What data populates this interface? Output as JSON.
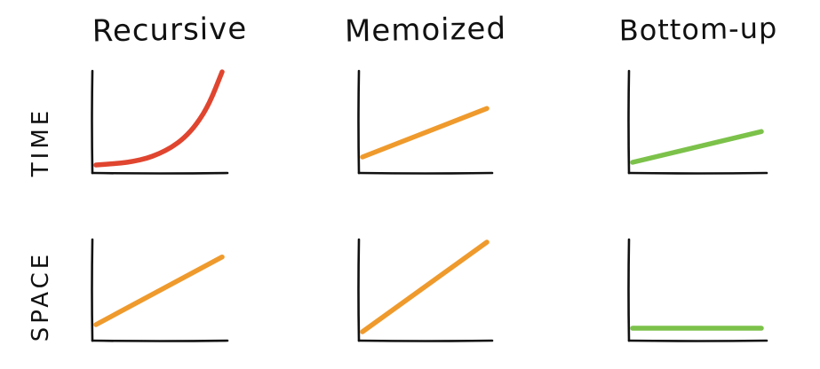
{
  "columns": [
    {
      "id": "recursive",
      "title": "Recursive"
    },
    {
      "id": "memoized",
      "title": "Memoized"
    },
    {
      "id": "bottomup",
      "title": "Bottom-up"
    }
  ],
  "rows": [
    {
      "id": "time",
      "label": "TIME"
    },
    {
      "id": "space",
      "label": "SPACE"
    }
  ],
  "colors": {
    "exponential": "#e0452f",
    "linear": "#ef9a2c",
    "efficient": "#7cc24a",
    "axis": "#111111"
  },
  "chart_data": [
    {
      "row": "time",
      "column": "recursive",
      "type": "line",
      "growth": "exponential",
      "color": "#e0452f",
      "x": [
        0,
        0.1,
        0.2,
        0.3,
        0.4,
        0.5,
        0.6,
        0.7,
        0.8,
        0.9,
        1.0
      ],
      "y": [
        0.0,
        0.01,
        0.02,
        0.04,
        0.07,
        0.12,
        0.19,
        0.29,
        0.44,
        0.66,
        1.0
      ]
    },
    {
      "row": "time",
      "column": "memoized",
      "type": "line",
      "growth": "linear",
      "color": "#ef9a2c",
      "x": [
        0,
        1
      ],
      "y": [
        0,
        0.57
      ]
    },
    {
      "row": "time",
      "column": "bottomup",
      "type": "line",
      "growth": "linear",
      "color": "#7cc24a",
      "x": [
        0,
        1
      ],
      "y": [
        0,
        0.34
      ]
    },
    {
      "row": "space",
      "column": "recursive",
      "type": "line",
      "growth": "linear",
      "color": "#ef9a2c",
      "x": [
        0,
        1
      ],
      "y": [
        0,
        0.82
      ]
    },
    {
      "row": "space",
      "column": "memoized",
      "type": "line",
      "growth": "linear",
      "color": "#ef9a2c",
      "x": [
        0,
        1
      ],
      "y": [
        0,
        1.0
      ]
    },
    {
      "row": "space",
      "column": "bottomup",
      "type": "line",
      "growth": "constant",
      "color": "#7cc24a",
      "x": [
        0,
        1
      ],
      "y": [
        0,
        0
      ]
    }
  ]
}
